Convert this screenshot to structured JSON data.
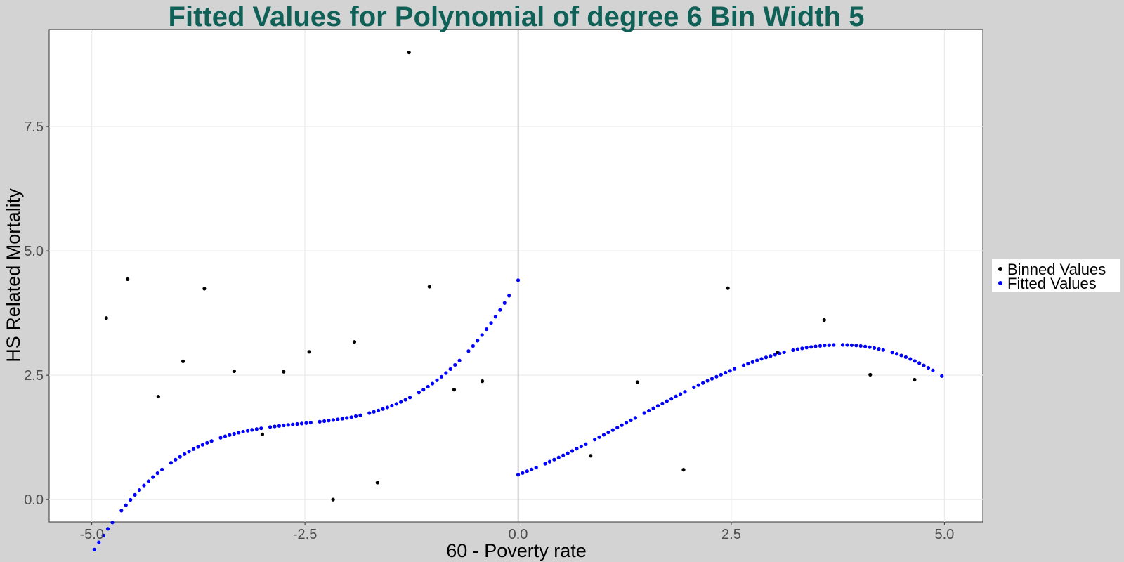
{
  "chart_data": {
    "type": "scatter",
    "title": "Fitted Values for Polynomial of degree 6 Bin Width 5",
    "title_color": "#0f6157",
    "xlabel": "60 - Poverty rate",
    "ylabel": "HS Related Mortality",
    "xlim": [
      -5.5,
      5.45
    ],
    "ylim": [
      -0.45,
      9.45
    ],
    "xticks": [
      -5.0,
      -2.5,
      0.0,
      2.5,
      5.0
    ],
    "xtick_labels": [
      "-5.0",
      "-2.5",
      "0.0",
      "2.5",
      "5.0"
    ],
    "yticks": [
      0.0,
      2.5,
      5.0,
      7.5
    ],
    "ytick_labels": [
      "0.0",
      "2.5",
      "5.0",
      "7.5"
    ],
    "cutoff_line_x": 0.0,
    "grid": true,
    "legend_position": "right",
    "series": [
      {
        "name": "Binned Values",
        "color": "#000000",
        "points": [
          [
            -4.83,
            3.65
          ],
          [
            -4.58,
            4.43
          ],
          [
            -4.22,
            2.07
          ],
          [
            -3.93,
            2.78
          ],
          [
            -3.68,
            4.24
          ],
          [
            -3.33,
            2.58
          ],
          [
            -3.0,
            1.31
          ],
          [
            -2.75,
            2.57
          ],
          [
            -2.45,
            2.97
          ],
          [
            -2.17,
            0.0
          ],
          [
            -1.92,
            3.17
          ],
          [
            -1.65,
            0.34
          ],
          [
            -1.28,
            8.99
          ],
          [
            -1.04,
            4.28
          ],
          [
            -0.75,
            2.21
          ],
          [
            -0.42,
            2.38
          ],
          [
            0.85,
            0.88
          ],
          [
            1.4,
            2.36
          ],
          [
            1.94,
            0.6
          ],
          [
            2.46,
            4.25
          ],
          [
            3.04,
            2.96
          ],
          [
            3.59,
            3.61
          ],
          [
            4.13,
            2.51
          ],
          [
            4.65,
            2.41
          ]
        ]
      },
      {
        "name": "Fitted Values",
        "color": "#0000ff",
        "left_poly": [
          4.41,
          3.06,
          1.136,
          0.1488
        ],
        "left_range": [
          -4.97,
          0.0
        ],
        "right_poly": [
          0.5,
          0.64,
          0.21,
          -0.052
        ],
        "right_range": [
          0.0,
          4.97
        ]
      }
    ]
  }
}
